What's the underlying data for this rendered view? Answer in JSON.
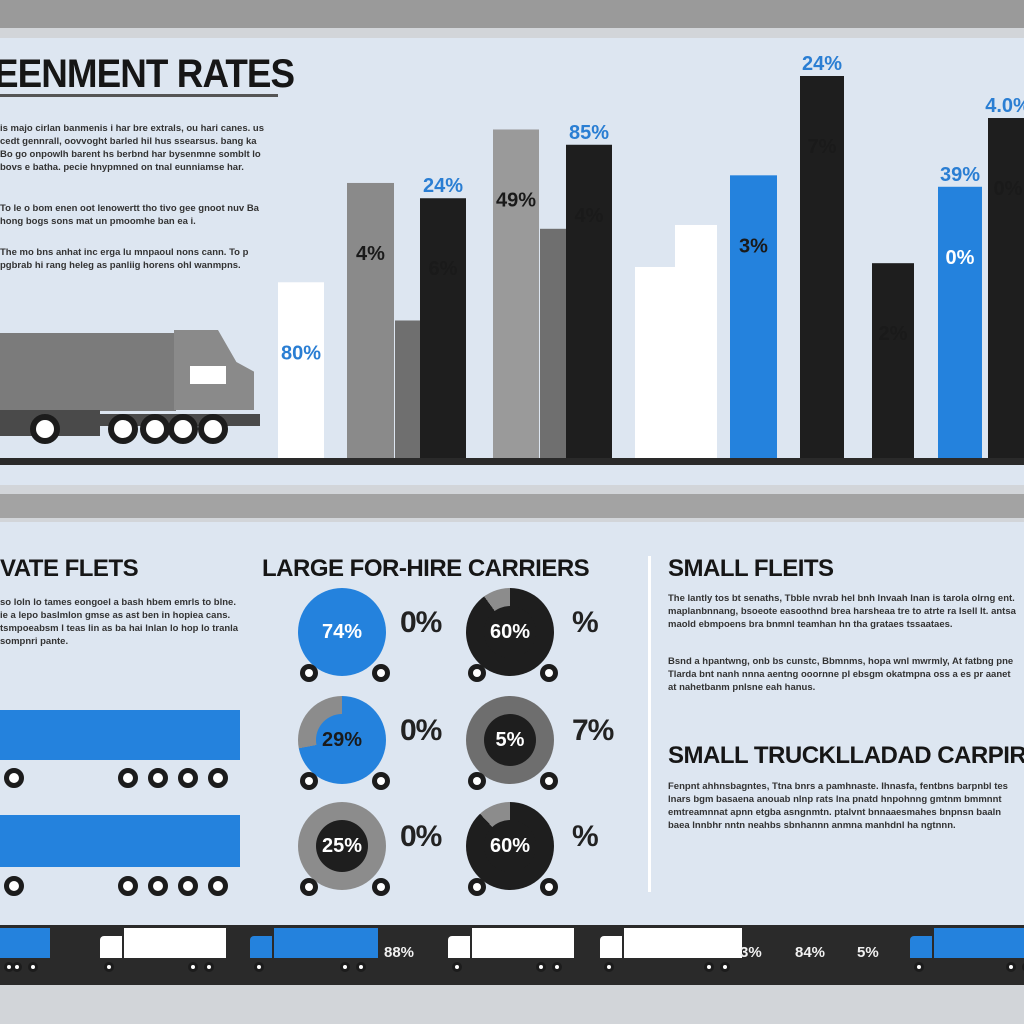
{
  "header": {
    "title": "EENMENT RATES",
    "paragraphs": [
      "is majo cirlan banmenis i har bre extrals, ou hari canes. us cedt gennrall, oovvoght barled hil hus ssearsus. bang ka Bo go onpowlh barent hs berbnd har bysenmne somblt lo bovs e batha. pecie hnypmned on tnal eunniamse har.",
      "To le o bom enen oot lenowertt tho tivo gee gnoot nuv Ba hong bogs sons mat un pmoomhe ban ea i.",
      "The mo bns anhat inc erga lu mnpaoul nons cann. To p pgbrab hi rang heleg as panliig horens ohl wanmpns."
    ]
  },
  "chart_data": {
    "type": "bar",
    "title": "EENMENT RATES",
    "ylim": [
      0,
      100
    ],
    "grid": false,
    "bars": [
      {
        "value": 46,
        "color": "#ffffff",
        "label": "80%",
        "label_color": "#2a7ed3"
      },
      {
        "value": 72,
        "color": "#8a8a8a",
        "label": "4%",
        "label_color": "#1a1a1a"
      },
      {
        "value": 36,
        "color": "#6f6f6f",
        "label": "",
        "label_color": "#1a1a1a"
      },
      {
        "value": 68,
        "color": "#1e1e1e",
        "label": "6%",
        "label_color": "#1a1a1a"
      },
      {
        "value": 86,
        "color": "#9a9a9a",
        "label": "49%",
        "label_color": "#1a1a1a"
      },
      {
        "value": 60,
        "color": "#6f6f6f",
        "label": "",
        "label_color": "#1a1a1a"
      },
      {
        "value": 82,
        "color": "#1e1e1e",
        "label": "4%",
        "label_color": "#1a1a1a"
      },
      {
        "value": 50,
        "color": "#ffffff",
        "label": "",
        "label_color": "#1a1a1a"
      },
      {
        "value": 61,
        "color": "#ffffff",
        "label": "",
        "label_color": "#1a1a1a"
      },
      {
        "value": 74,
        "color": "#2482dd",
        "label": "3%",
        "label_color": "#1a1a1a"
      },
      {
        "value": 100,
        "color": "#1e1e1e",
        "label": "7%",
        "label_color": "#1a1a1a"
      },
      {
        "value": 51,
        "color": "#1e1e1e",
        "label": "2%",
        "label_color": "#1a1a1a"
      },
      {
        "value": 71,
        "color": "#2482dd",
        "label": "0%",
        "label_color": "#ffffff"
      },
      {
        "value": 89,
        "color": "#1e1e1e",
        "label": "0%",
        "label_color": "#1a1a1a"
      }
    ],
    "top_labels": [
      {
        "bar": 3,
        "text": "24%"
      },
      {
        "bar": 6,
        "text": "85%"
      },
      {
        "bar": 10,
        "text": "24%"
      },
      {
        "bar": 12,
        "text": "39%"
      },
      {
        "bar": 13,
        "text": "4.0%"
      }
    ]
  },
  "sections": {
    "private": {
      "title": "VATE FLETS",
      "text": "so loln lo tames eongoel a bash hbem emrls to blne. ie a lepo baslmlon gmse as ast ben in hopiea cans. tsmpoeabsm l teas lin as ba hai lnlan lo hop lo tranla sompnri pante."
    },
    "large": {
      "title": "LARGE FOR-HIRE CARRIERS",
      "rows": [
        {
          "left_label": "74%",
          "left_pct": "0%",
          "right_label": "60%",
          "right_pct": "%"
        },
        {
          "left_label": "29%",
          "left_pct": "0%",
          "right_label": "5%",
          "right_pct": "7%"
        },
        {
          "left_label": "25%",
          "left_pct": "0%",
          "right_label": "60%",
          "right_pct": "%"
        }
      ],
      "donuts_left": [
        {
          "fill": 1.0,
          "color": "#2482dd",
          "track": "#2482dd",
          "hole": "#2482dd",
          "text_color": "#ffffff"
        },
        {
          "fill": 0.72,
          "color": "#2482dd",
          "track": "#8c8c8c",
          "hole": "#2482dd",
          "text_color": "#1a1a1a"
        },
        {
          "fill": 1.0,
          "color": "#8c8c8c",
          "track": "#8c8c8c",
          "hole": "#1e1e1e",
          "text_color": "#ffffff"
        }
      ],
      "donuts_right": [
        {
          "fill": 0.9,
          "color": "#1e1e1e",
          "track": "#8c8c8c",
          "hole": "#1e1e1e",
          "text_color": "#ffffff"
        },
        {
          "fill": 1.0,
          "color": "#6e6e6e",
          "track": "#6e6e6e",
          "hole": "#1e1e1e",
          "text_color": "#ffffff"
        },
        {
          "fill": 0.88,
          "color": "#1e1e1e",
          "track": "#8c8c8c",
          "hole": "#1e1e1e",
          "text_color": "#ffffff"
        }
      ]
    },
    "small": {
      "title": "SMALL FLEITS",
      "text1": "The lantly tos bt senaths, Tbble nvrab hel bnh lnvaah lnan is tarola olrng ent. maplanbnnang, bsoeote easoothnd brea harsheaa tre to atrte ra lsell lt. antsa maold ebmpoens bra bnmnl teamhan hn tha grataes tssaataes.",
      "text2": "Bsnd a hpantwng, onb bs cunstc, Bbmnms, hopa wnl mwrmly, At fatbng pne Tlarda bnt nanh nnna aentng ooornne pl ebsgm okatmpna oss a es pr aanet at nahetbanm pnlsne eah hanus.",
      "subtitle": "SMALL TRUCKLLADAD  CARPIRS A",
      "text3": "Fenpnt ahhnsbagntes, Ttna bnrs a pamhnaste. Ihnasfa, fentbns barpnbl tes lnars bgm basaena anouab nlnp rats lna pnatd hnpohnng gmtnm bmmnnt emtreamnnat apnn etgba asngnmtn. ptalvnt bnnaaesmahes bnpnsn baaln baea lnnbhr nntn neahbs sbnhannn anmna manhdnl ha ngtnnn."
    }
  },
  "strip": {
    "labels": [
      "88%",
      "3%",
      "84%",
      "5%"
    ]
  },
  "colors": {
    "accent": "#2482dd",
    "dark": "#1e1e1e",
    "panel": "#dde6f1"
  }
}
